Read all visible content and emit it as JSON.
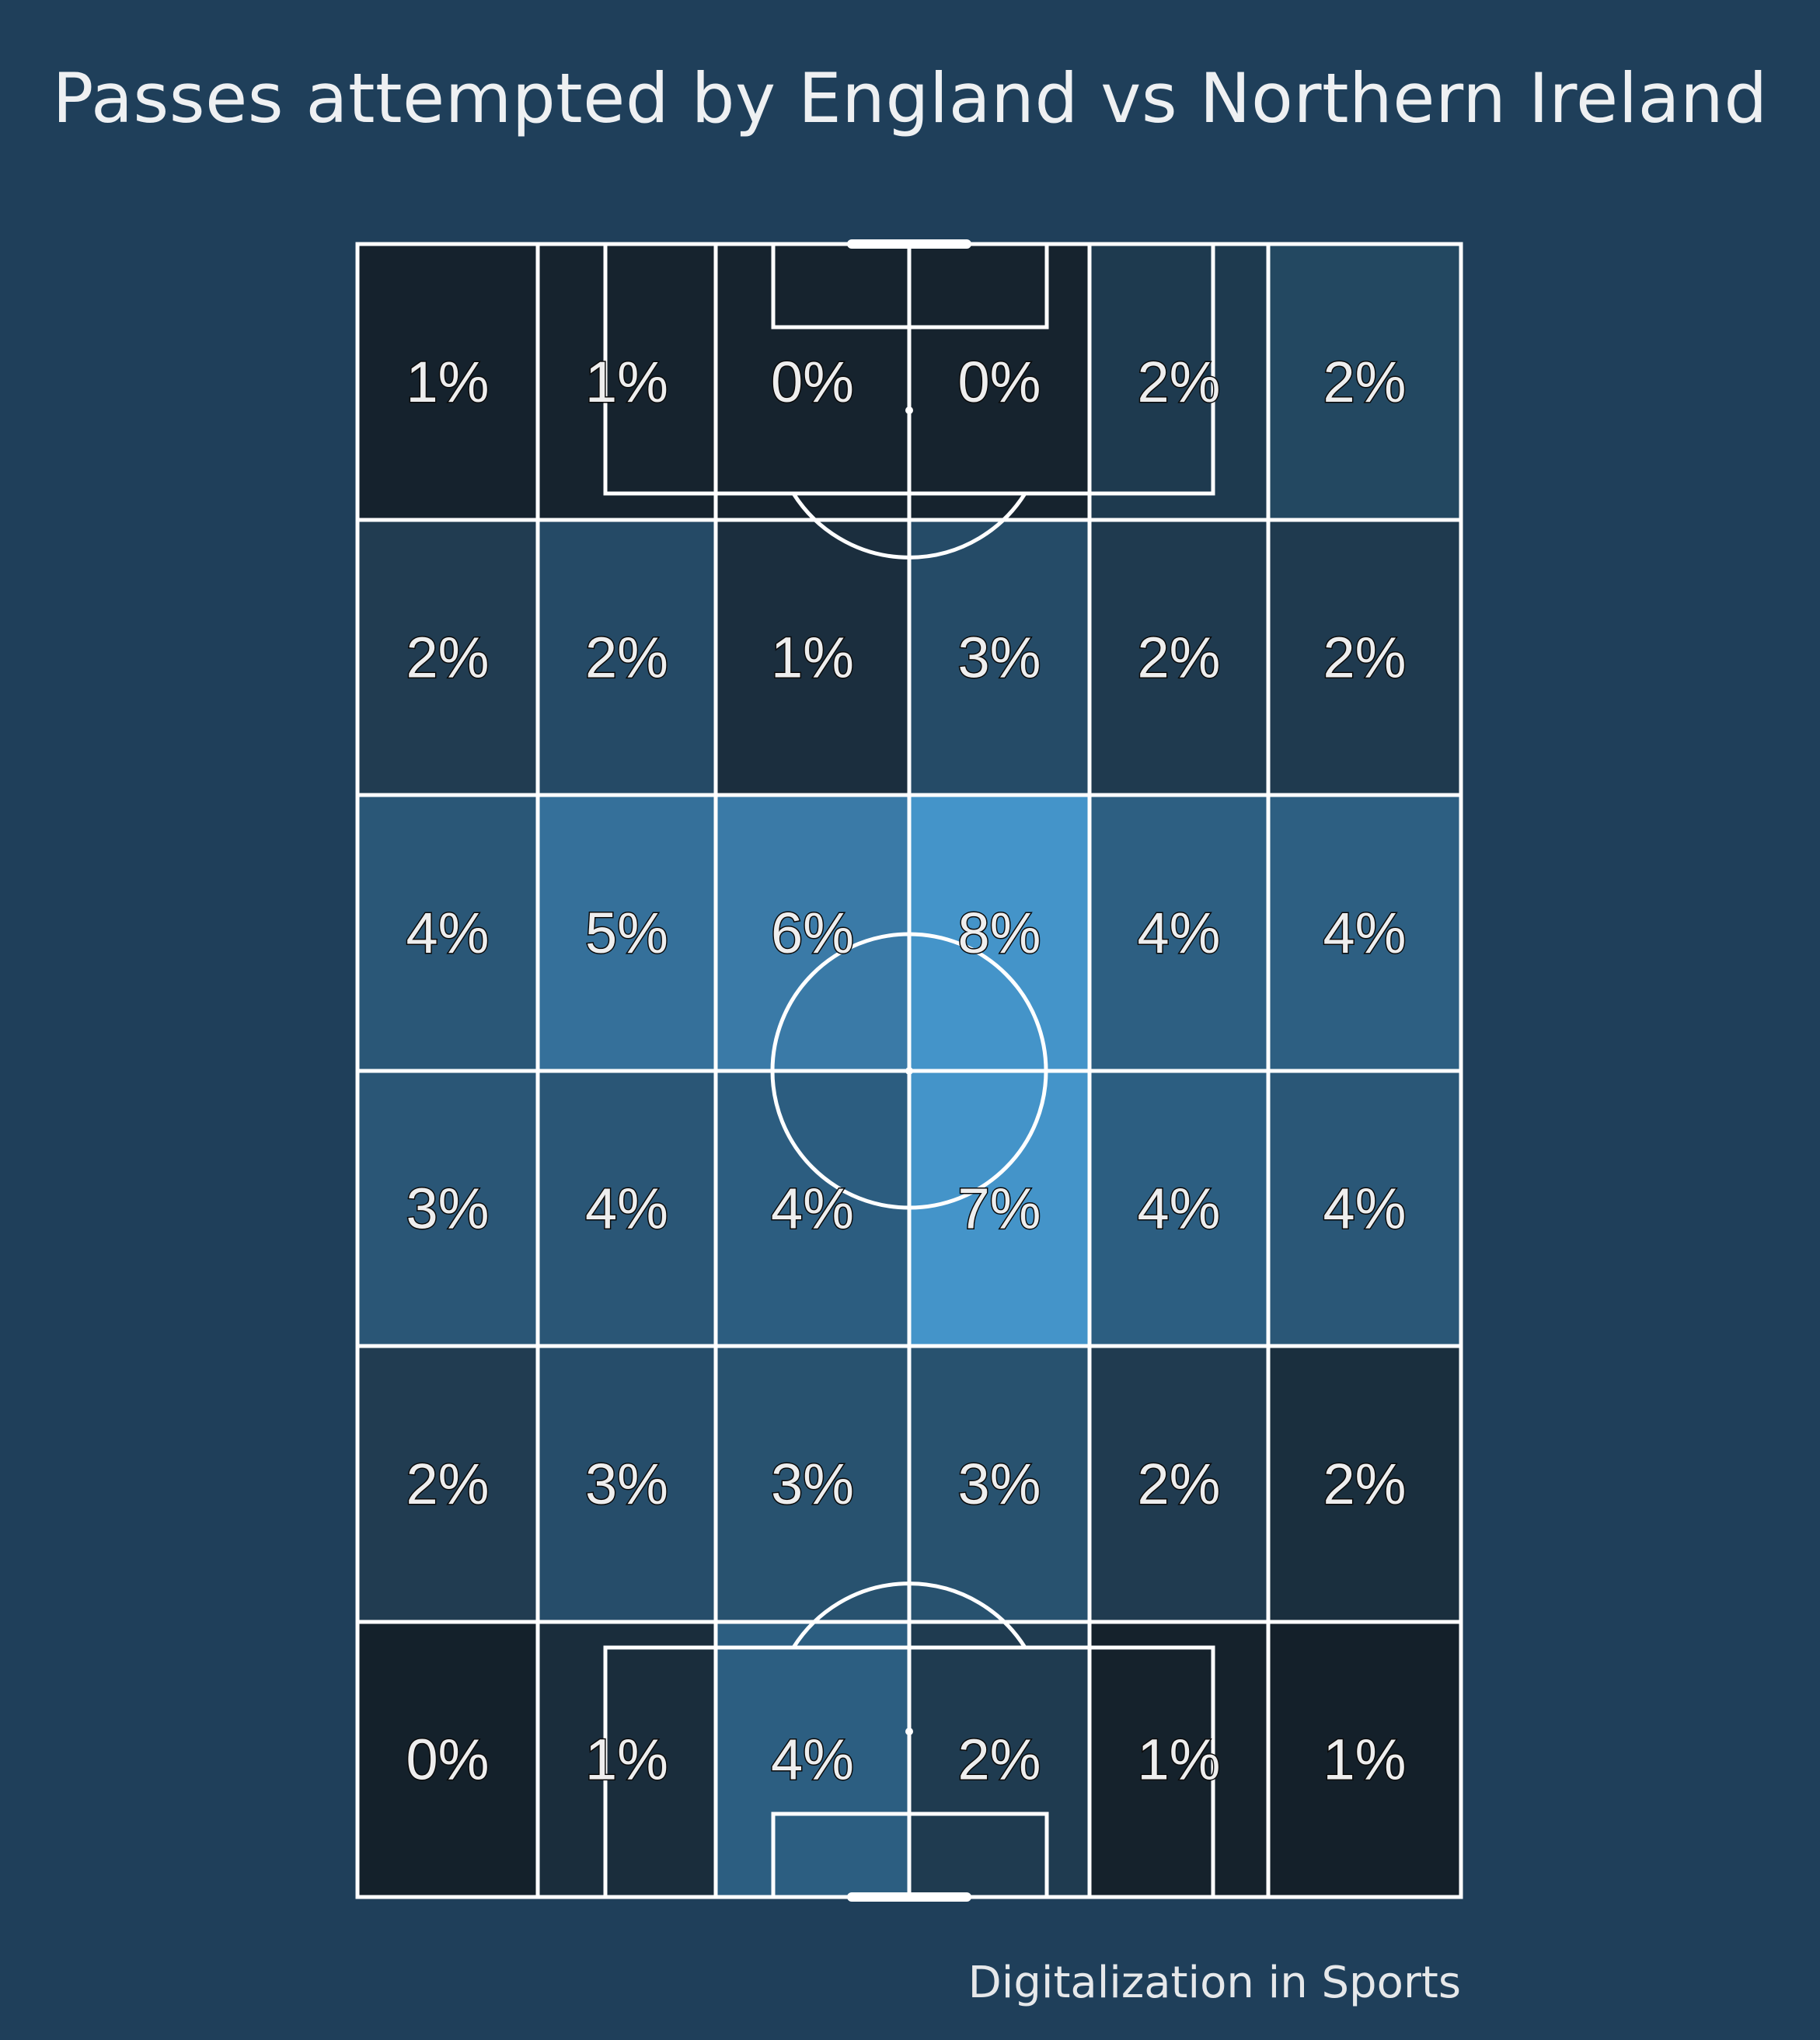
{
  "chart_data": {
    "type": "heatmap",
    "title": "Passes attempted by England vs Northern Ireland",
    "credit": "Digitalization in Sports",
    "rows": 6,
    "cols": 6,
    "orientation": "vertical-pitch",
    "values": [
      [
        1,
        1,
        0,
        0,
        2,
        2
      ],
      [
        2,
        2,
        1,
        3,
        2,
        2
      ],
      [
        4,
        5,
        6,
        8,
        4,
        4
      ],
      [
        3,
        4,
        4,
        7,
        4,
        4
      ],
      [
        2,
        3,
        3,
        3,
        2,
        2
      ],
      [
        0,
        1,
        4,
        2,
        1,
        1
      ]
    ],
    "labels": [
      [
        "1%",
        "1%",
        "0%",
        "0%",
        "2%",
        "2%"
      ],
      [
        "2%",
        "2%",
        "1%",
        "3%",
        "2%",
        "2%"
      ],
      [
        "4%",
        "5%",
        "6%",
        "8%",
        "4%",
        "4%"
      ],
      [
        "3%",
        "4%",
        "4%",
        "7%",
        "4%",
        "4%"
      ],
      [
        "2%",
        "3%",
        "3%",
        "3%",
        "2%",
        "2%"
      ],
      [
        "0%",
        "1%",
        "4%",
        "2%",
        "1%",
        "1%"
      ]
    ],
    "cell_colors": [
      [
        "#15222d",
        "#16232e",
        "#16232e",
        "#16232e",
        "#1e3a4f",
        "#234861"
      ],
      [
        "#213c51",
        "#254a66",
        "#1b2e3e",
        "#254b67",
        "#1f3a4f",
        "#1f3a4f"
      ],
      [
        "#2a5777",
        "#35709a",
        "#3a7aa7",
        "#4494c9",
        "#2d5f82",
        "#2d5f82"
      ],
      [
        "#2a5676",
        "#2a5676",
        "#2c5d80",
        "#4494c9",
        "#2c5e81",
        "#2a5777"
      ],
      [
        "#213c51",
        "#264d6a",
        "#28526f",
        "#28526f",
        "#203b50",
        "#1a2f3e"
      ],
      [
        "#14212b",
        "#1a2d3c",
        "#2c5e81",
        "#1f3b50",
        "#15222c",
        "#14202a"
      ]
    ],
    "colormap": "Blues (dark)",
    "value_unit": "%",
    "background": "#1f3f5a",
    "line_color": "#ffffff"
  }
}
